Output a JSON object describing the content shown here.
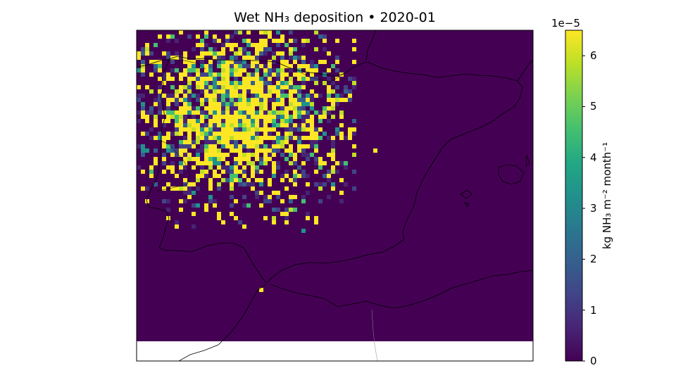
{
  "chart_data": {
    "type": "heatmap",
    "title": "Wet NH₃ deposition  •  2020-01",
    "colorbar": {
      "label": "kg NH₃ m⁻² month⁻¹",
      "scale_factor_label": "1e−5",
      "range": [
        0,
        6.5e-05
      ],
      "ticks": [
        0,
        1,
        2,
        3,
        4,
        5,
        6
      ],
      "tick_labels": [
        "0",
        "1",
        "2",
        "3",
        "4",
        "5",
        "6"
      ],
      "colormap": "viridis"
    },
    "map": {
      "region": "Iberian Peninsula",
      "projection": "Lambert conformal",
      "coastlines": true,
      "borders": true
    },
    "summary": {
      "background_value": 0,
      "high_values_region": "north-western Iberian Peninsula (Galicia, Asturias, Castilla y León)",
      "max_value": 6.5e-05
    }
  },
  "colors": {
    "viridis_low": "#440154",
    "viridis_high": "#fde725"
  }
}
